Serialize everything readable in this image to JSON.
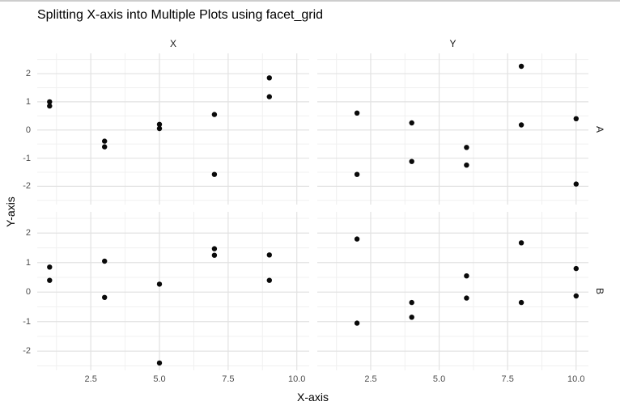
{
  "title": "Splitting X-axis into Multiple Plots using facet_grid",
  "facets": {
    "col_labels": [
      "X",
      "Y"
    ],
    "row_labels": [
      "A",
      "B"
    ]
  },
  "x_axis": {
    "label": "X-axis",
    "tick_labels": [
      "2.5",
      "5.0",
      "7.5",
      "10.0"
    ],
    "tick_values": [
      2.5,
      5,
      7.5,
      10
    ]
  },
  "y_axis": {
    "label": "Y-axis",
    "tick_labels": [
      "2",
      "1",
      "0",
      "-1",
      "-2"
    ],
    "tick_values": [
      2,
      1,
      0,
      -1,
      -2
    ]
  },
  "colors": {
    "background": "#ffffff",
    "grid_major": "#e2e2e2",
    "grid_minor": "#f0f0f0",
    "tick_text": "#4d4d4d",
    "strip_text": "#1a1a1a",
    "title_text": "#000000",
    "point": "#0a0a0a",
    "top_edge": "#cdcdcd"
  },
  "chart_data": {
    "type": "scatter",
    "title": "Splitting X-axis into Multiple Plots using facet_grid",
    "xlabel": "X-axis",
    "ylabel": "Y-axis",
    "facet_layout": "2 columns (X, Y) by 2 rows (A, B)",
    "grid": true,
    "legend": "none",
    "xlim": [
      0.55,
      10.45
    ],
    "ylim": [
      -2.65,
      2.72
    ],
    "x_major_gridlines": [
      2.5,
      5,
      7.5,
      10
    ],
    "x_minor_gridlines": [
      1.25,
      3.75,
      6.25,
      8.75
    ],
    "y_major_gridlines": [
      -2,
      -1,
      0,
      1,
      2
    ],
    "y_minor_gridlines": [
      -2.5,
      -1.5,
      -0.5,
      0.5,
      1.5,
      2.5
    ],
    "point_radius": 3.2,
    "panels": [
      {
        "facet_col": "X",
        "facet_row": "A",
        "points": [
          [
            1,
            1.0
          ],
          [
            1,
            0.85
          ],
          [
            3,
            -0.4
          ],
          [
            3,
            -0.6
          ],
          [
            5,
            0.2
          ],
          [
            5,
            0.05
          ],
          [
            7,
            0.55
          ],
          [
            7,
            -1.58
          ],
          [
            9,
            1.85
          ],
          [
            9,
            1.18
          ]
        ]
      },
      {
        "facet_col": "Y",
        "facet_row": "A",
        "points": [
          [
            2,
            0.6
          ],
          [
            2,
            -1.58
          ],
          [
            4,
            0.25
          ],
          [
            4,
            -1.12
          ],
          [
            6,
            -0.62
          ],
          [
            6,
            -1.25
          ],
          [
            8,
            2.26
          ],
          [
            8,
            0.18
          ],
          [
            10,
            0.4
          ],
          [
            10,
            -1.92
          ]
        ]
      },
      {
        "facet_col": "X",
        "facet_row": "B",
        "points": [
          [
            1,
            0.85
          ],
          [
            1,
            0.4
          ],
          [
            3,
            1.05
          ],
          [
            3,
            -0.18
          ],
          [
            5,
            0.27
          ],
          [
            5,
            -2.4
          ],
          [
            7,
            1.47
          ],
          [
            7,
            1.25
          ],
          [
            9,
            1.26
          ],
          [
            9,
            0.4
          ]
        ]
      },
      {
        "facet_col": "Y",
        "facet_row": "B",
        "points": [
          [
            2,
            1.8
          ],
          [
            2,
            -1.05
          ],
          [
            4,
            -0.35
          ],
          [
            4,
            -0.85
          ],
          [
            6,
            0.55
          ],
          [
            6,
            -0.2
          ],
          [
            8,
            1.67
          ],
          [
            8,
            -0.35
          ],
          [
            10,
            0.8
          ],
          [
            10,
            -0.13
          ]
        ]
      }
    ]
  }
}
